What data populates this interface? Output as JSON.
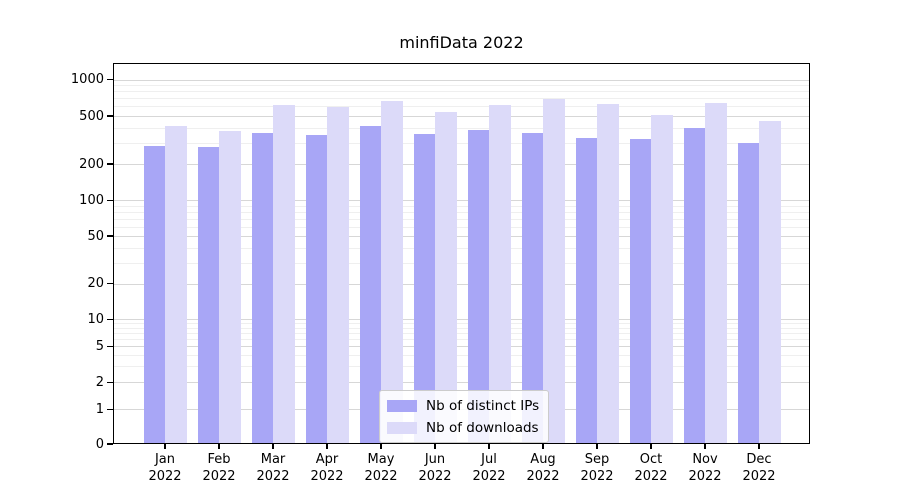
{
  "chart_data": {
    "type": "bar",
    "title": "minfiData 2022",
    "categories": [
      "Jan 2022",
      "Feb 2022",
      "Mar 2022",
      "Apr 2022",
      "May 2022",
      "Jun 2022",
      "Jul 2022",
      "Aug 2022",
      "Sep 2022",
      "Oct 2022",
      "Nov 2022",
      "Dec 2022"
    ],
    "series": [
      {
        "name": "Nb of distinct IPs",
        "color": "#a8a6f6",
        "values": [
          280,
          275,
          365,
          345,
          415,
          355,
          385,
          360,
          330,
          325,
          400,
          300
        ]
      },
      {
        "name": "Nb of downloads",
        "color": "#dcdaf9",
        "values": [
          415,
          375,
          620,
          590,
          665,
          540,
          615,
          695,
          630,
          515,
          645,
          455
        ]
      }
    ],
    "y_axis": {
      "scale": "symlog",
      "ticks": [
        0,
        1,
        2,
        5,
        10,
        20,
        50,
        100,
        200,
        500,
        1000
      ],
      "minor_gridlines": [
        3,
        4,
        6,
        7,
        8,
        9,
        30,
        40,
        60,
        70,
        80,
        90,
        300,
        400,
        600,
        700,
        800,
        900
      ],
      "range": [
        0,
        1400
      ]
    },
    "xlabel": "",
    "ylabel": "",
    "grid": true,
    "legend_position": "lower center",
    "colors": {
      "major_grid": "#d7d7d7",
      "minor_grid": "#efefef",
      "axis": "#000000",
      "background": "#ffffff"
    }
  }
}
